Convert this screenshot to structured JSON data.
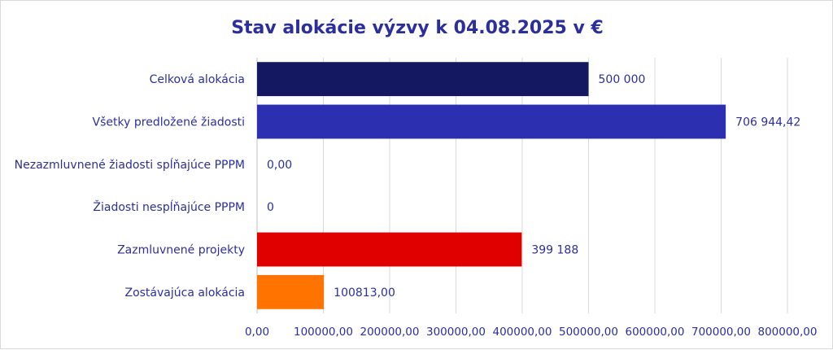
{
  "chart_data": {
    "type": "bar",
    "orientation": "horizontal",
    "title": "Stav alokácie výzvy k 04.08.2025 v €",
    "categories": [
      "Celková alokácia",
      "Všetky predložené žiadosti",
      "Nezazmluvnené žiadosti spĺňajúce PPPM",
      "Žiadosti nespĺňajúce PPPM",
      "Zazmluvnené projekty",
      "Zostávajúca alokácia"
    ],
    "values": [
      500000,
      706944.42,
      0,
      0,
      399188,
      100813
    ],
    "value_labels": [
      "500 000",
      "706 944,42",
      "0,00",
      "0",
      "399 188",
      "100813,00"
    ],
    "colors": [
      "#141860",
      "#2b2fb0",
      "#2b2fb0",
      "#2b2fb0",
      "#e00000",
      "#ff7300"
    ],
    "xlim": [
      0,
      800000
    ],
    "x_ticks": [
      0,
      100000,
      200000,
      300000,
      400000,
      500000,
      600000,
      700000,
      800000
    ],
    "x_tick_labels": [
      "0,00",
      "100000,00",
      "200000,00",
      "300000,00",
      "400000,00",
      "500000,00",
      "600000,00",
      "700000,00",
      "800000,00"
    ],
    "grid": true,
    "legend": "none"
  }
}
